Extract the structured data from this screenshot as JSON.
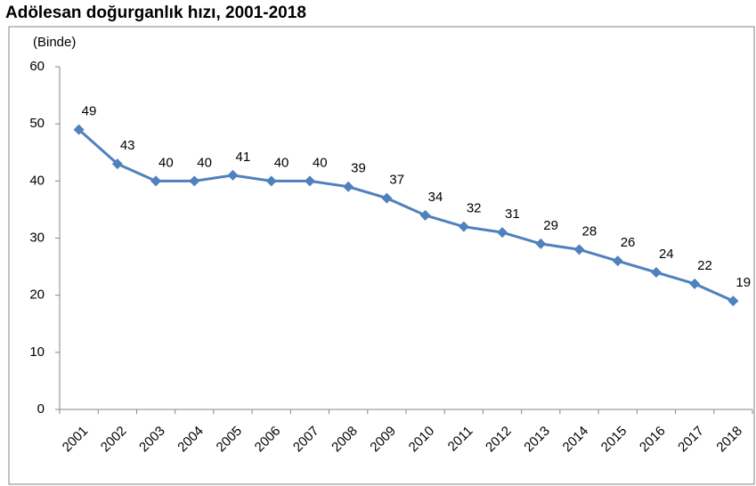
{
  "chart_data": {
    "type": "line",
    "title": "Adölesan doğurganlık hızı, 2001-2018",
    "y_label": "(Binde)",
    "categories": [
      "2001",
      "2002",
      "2003",
      "2004",
      "2005",
      "2006",
      "2007",
      "2008",
      "2009",
      "2010",
      "2011",
      "2012",
      "2013",
      "2014",
      "2015",
      "2016",
      "2017",
      "2018"
    ],
    "series": [
      {
        "name": "Adölesan doğurganlık hızı",
        "color": "#4f81bd",
        "values": [
          49,
          43,
          40,
          40,
          41,
          40,
          40,
          39,
          37,
          34,
          32,
          31,
          29,
          28,
          26,
          24,
          22,
          19
        ]
      }
    ],
    "ylim": [
      0,
      60
    ],
    "yticks": [
      0,
      10,
      20,
      30,
      40,
      50,
      60
    ],
    "grid": false,
    "data_labels": true
  }
}
